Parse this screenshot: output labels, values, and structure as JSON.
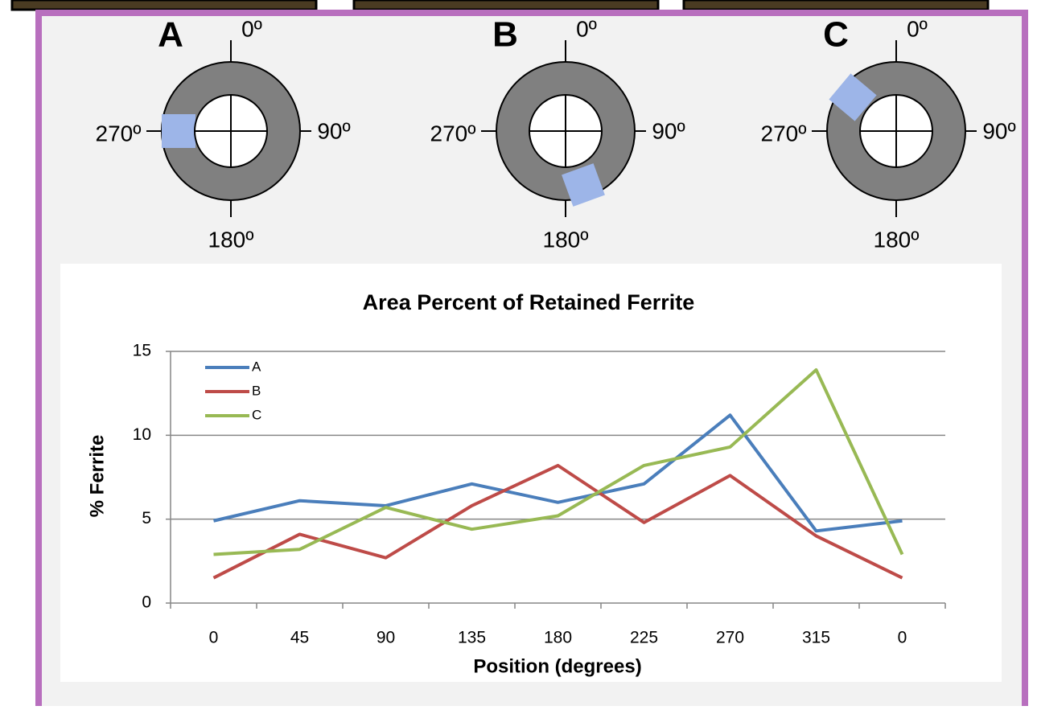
{
  "diagrams": [
    {
      "letter": "A",
      "top": "0º",
      "right": "90º",
      "bottom": "180º",
      "left": "270º"
    },
    {
      "letter": "B",
      "top": "0º",
      "right": "90º",
      "bottom": "180º",
      "left": "270º"
    },
    {
      "letter": "C",
      "top": "0º",
      "right": "90º",
      "bottom": "180º",
      "left": "270º"
    }
  ],
  "chart_data": {
    "type": "line",
    "title": "Area Percent of Retained Ferrite",
    "x_label": "Position (degrees)",
    "y_label": "% Ferrite",
    "categories": [
      "0",
      "45",
      "90",
      "135",
      "180",
      "225",
      "270",
      "315",
      "0"
    ],
    "series": [
      {
        "name": "A",
        "color": "#4a7ebb",
        "values": [
          4.9,
          6.1,
          5.8,
          7.1,
          6.0,
          7.1,
          11.2,
          4.3,
          4.9
        ]
      },
      {
        "name": "B",
        "color": "#be4b48",
        "values": [
          1.5,
          4.1,
          2.7,
          5.8,
          8.2,
          4.8,
          7.6,
          4.0,
          1.5
        ]
      },
      {
        "name": "C",
        "color": "#98b954",
        "values": [
          2.9,
          3.2,
          5.7,
          4.4,
          5.2,
          8.2,
          9.3,
          13.9,
          2.9
        ]
      }
    ],
    "ylim": [
      0,
      15
    ],
    "yticks": [
      0,
      5,
      10,
      15
    ],
    "grid": true,
    "legend": "top-left"
  }
}
